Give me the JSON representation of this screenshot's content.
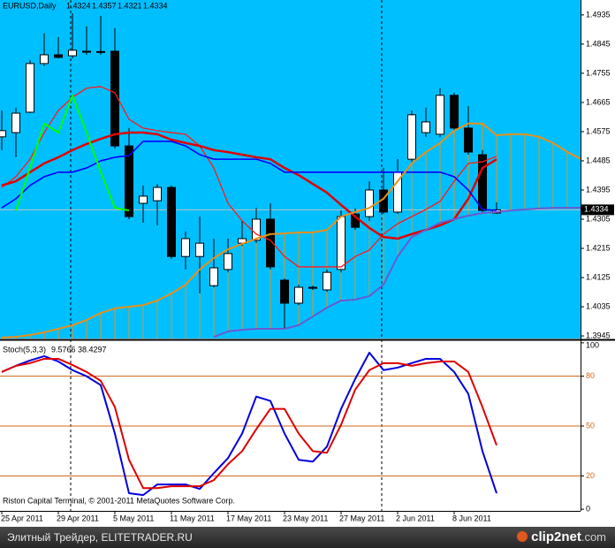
{
  "chart_data": [
    {
      "type": "candlestick",
      "title": "EURUSD,Daily",
      "categories": [
        "25 Apr 2011",
        null,
        null,
        null,
        "29 Apr 2011",
        null,
        null,
        null,
        "5 May 2011",
        null,
        null,
        null,
        "11 May 2011",
        null,
        null,
        null,
        "17 May 2011",
        null,
        null,
        null,
        "23 May 2011",
        null,
        null,
        null,
        "27 May 2011",
        null,
        null,
        null,
        "2 Jun 2011",
        null,
        null,
        null,
        "8 Jun 2011",
        null,
        null,
        null,
        null,
        null,
        null,
        null,
        null,
        null
      ],
      "open": [
        1.4559,
        1.4572,
        1.4635,
        1.4785,
        1.4812,
        1.4809,
        1.4823,
        1.482,
        1.4823,
        1.4531,
        1.4354,
        1.4362,
        1.4403,
        1.419,
        1.419,
        1.41,
        1.415,
        1.4231,
        1.424,
        1.4305,
        1.4117,
        1.4046,
        1.4095,
        1.4087,
        1.415,
        1.4321,
        1.4313,
        1.4395,
        1.4327,
        1.449,
        1.4572,
        1.4567,
        1.4687,
        1.4586,
        1.4504,
        1.4324,
        null,
        null,
        null,
        null,
        null,
        null
      ],
      "high": [
        1.464,
        1.4649,
        1.4796,
        1.4878,
        1.4867,
        1.494,
        1.49,
        1.4932,
        1.4894,
        1.4586,
        1.4409,
        1.4414,
        1.4409,
        1.4267,
        1.4313,
        1.4245,
        1.4245,
        1.43,
        1.434,
        1.4354,
        1.4122,
        1.4103,
        1.41,
        1.415,
        1.4332,
        1.4338,
        1.4422,
        1.4463,
        1.449,
        1.464,
        1.4649,
        1.4709,
        1.4695,
        1.4654,
        1.4518,
        1.4357,
        null,
        null,
        null,
        null,
        null,
        null
      ],
      "low": [
        1.4518,
        1.4496,
        1.4632,
        1.4777,
        1.4801,
        1.4801,
        1.4812,
        1.4812,
        1.4523,
        1.4305,
        1.4294,
        1.4286,
        1.4182,
        1.415,
        1.4076,
        1.4095,
        1.4141,
        1.4223,
        1.4231,
        1.415,
        1.3967,
        1.404,
        1.4087,
        1.4081,
        1.4141,
        1.4272,
        1.43,
        1.4321,
        1.4321,
        1.4482,
        1.4559,
        1.4559,
        1.4578,
        1.4504,
        1.4327,
        1.4321,
        null,
        null,
        null,
        null,
        null,
        null
      ],
      "close": [
        1.4578,
        1.4632,
        1.4785,
        1.4812,
        1.4804,
        1.4826,
        1.482,
        1.4822,
        1.4531,
        1.4313,
        1.4376,
        1.4403,
        1.419,
        1.4245,
        1.4231,
        1.4155,
        1.4199,
        1.4245,
        1.4305,
        1.4158,
        1.4046,
        1.4095,
        1.4092,
        1.4141,
        1.4313,
        1.428,
        1.4395,
        1.4327,
        1.445,
        1.4627,
        1.4605,
        1.4687,
        1.4586,
        1.4512,
        1.4332,
        1.4334,
        null,
        null,
        null,
        null,
        null,
        null
      ],
      "up_color": "#ffffff",
      "down_color": "#000000",
      "background": "#00bfff",
      "series": [
        {
          "color": "#ff1a1a",
          "width": 1.3,
          "values": [
            1.4403,
            1.4436,
            1.449,
            1.4572,
            1.464,
            1.4681,
            1.4709,
            1.4714,
            1.4695,
            1.4613,
            1.4586,
            1.4578,
            1.4572,
            1.4567,
            1.4531,
            1.4463,
            1.4354,
            1.43,
            1.4259,
            1.424,
            1.419,
            1.4158,
            1.4158,
            1.4158,
            1.4158,
            1.419,
            1.421,
            1.4259,
            1.4291,
            1.4313,
            1.4335,
            1.436,
            1.4422,
            1.4477,
            1.4482,
            1.4499,
            null,
            null,
            null,
            null,
            null,
            null
          ]
        },
        {
          "color": "#e00000",
          "width": 2.5,
          "values": [
            1.4409,
            1.4422,
            1.445,
            1.4477,
            1.4496,
            1.4518,
            1.4537,
            1.4553,
            1.4567,
            1.4572,
            1.4572,
            1.4567,
            1.455,
            1.454,
            1.4531,
            1.4518,
            1.4512,
            1.4504,
            1.4496,
            1.449,
            1.4463,
            1.4441,
            1.4414,
            1.4387,
            1.4349,
            1.4313,
            1.4278,
            1.425,
            1.4245,
            1.4259,
            1.4272,
            1.4286,
            1.4305,
            1.4368,
            1.4463,
            1.449,
            null,
            null,
            null,
            null,
            null,
            null
          ]
        },
        {
          "color": "#0000ff",
          "width": 1.6,
          "values": [
            1.434,
            1.4368,
            1.4409,
            1.4436,
            1.445,
            1.445,
            1.4463,
            1.4485,
            1.4496,
            1.4501,
            1.4545,
            1.4545,
            1.4545,
            1.4531,
            1.4504,
            1.449,
            1.449,
            1.449,
            1.449,
            1.4477,
            1.445,
            1.445,
            1.445,
            1.445,
            1.445,
            1.445,
            1.445,
            1.445,
            1.445,
            1.445,
            1.445,
            1.445,
            1.4436,
            1.4395,
            1.4335,
            1.4332,
            null,
            null,
            null,
            null,
            null,
            null
          ]
        },
        {
          "color": "#e8901a",
          "width": 2,
          "values": [
            1.394,
            1.3942,
            1.3948,
            1.3956,
            1.3967,
            1.3978,
            1.3994,
            1.4016,
            1.403,
            1.4035,
            1.404,
            1.4054,
            1.4076,
            1.4103,
            1.415,
            1.4185,
            1.4212,
            1.4229,
            1.4245,
            1.4259,
            1.4261,
            1.4264,
            1.4264,
            1.4272,
            1.4313,
            1.4327,
            1.434,
            1.4368,
            1.4422,
            1.4477,
            1.4512,
            1.454,
            1.4578,
            1.46,
            1.46,
            1.4564,
            1.4567,
            1.4567,
            1.4559,
            1.454,
            1.4512,
            1.449
          ]
        },
        {
          "color": "#6a5acd",
          "width": 2,
          "values": [
            null,
            null,
            null,
            null,
            null,
            null,
            null,
            null,
            null,
            null,
            null,
            null,
            null,
            null,
            null,
            1.3942,
            1.3959,
            1.3964,
            1.3967,
            1.3967,
            1.3967,
            1.3978,
            1.4005,
            1.4032,
            1.4054,
            1.4057,
            1.4068,
            1.4103,
            1.419,
            1.425,
            1.4272,
            1.4294,
            1.4305,
            1.4316,
            1.4324,
            1.4327,
            1.4332,
            1.4335,
            1.4338,
            1.434,
            1.434,
            1.434
          ]
        },
        {
          "color": "#00ff00",
          "width": 2,
          "values": [
            null,
            1.4332,
            1.4463,
            1.46,
            1.4572,
            1.4687,
            1.4572,
            1.445,
            1.434,
            1.4332,
            null,
            null,
            null,
            null,
            null,
            null,
            null,
            null,
            null,
            null,
            null,
            null,
            null,
            null,
            null,
            null,
            null,
            null,
            null,
            null,
            null,
            null,
            null,
            null,
            null,
            null,
            null,
            null,
            null,
            null,
            null,
            null
          ]
        }
      ],
      "cloud": {
        "series": [
          3,
          4
        ],
        "color": "#e8901a"
      },
      "last_price": 1.4334,
      "ylim": [
        1.3937,
        1.4981
      ],
      "yticks": [
        1.4935,
        1.4845,
        1.4755,
        1.4665,
        1.4575,
        1.4485,
        1.4395,
        1.4305,
        1.4215,
        1.4125,
        1.4035,
        1.3945
      ]
    },
    {
      "type": "line",
      "title": "Stoch(5,3,3)",
      "annotation": "Riston Capital Terminal, © 2001-2011 MetaQuotes Software Corp.",
      "series": [
        {
          "color": "#0000dd",
          "values": [
            82.5,
            86.2,
            89.4,
            92.0,
            88.8,
            83.6,
            79.9,
            74.6,
            45.5,
            9.6,
            8.5,
            14.9,
            14.9,
            14.9,
            12.2,
            21.7,
            30.7,
            45.5,
            67.7,
            65.1,
            45.5,
            29.7,
            28.6,
            37.6,
            60.3,
            78.3,
            94.1,
            83.6,
            85.1,
            87.8,
            90.4,
            90.4,
            82.5,
            69.3,
            34.9,
            9.5766,
            null,
            null,
            null,
            null,
            null,
            null
          ]
        },
        {
          "color": "#dd0000",
          "values": [
            82.5,
            86.2,
            87.8,
            90.4,
            90.4,
            86.7,
            82.5,
            77.2,
            61.4,
            29.7,
            12.7,
            12.7,
            13.8,
            13.8,
            13.8,
            17.5,
            27.0,
            34.9,
            48.1,
            60.3,
            60.3,
            45.5,
            34.9,
            33.9,
            50.8,
            71.9,
            83.6,
            87.8,
            87.8,
            86.2,
            87.8,
            88.8,
            88.8,
            82.5,
            61.4,
            38.4297,
            null,
            null,
            null,
            null,
            null,
            null
          ]
        }
      ],
      "levels": [
        20,
        50,
        80
      ],
      "level_color": "#d2691e",
      "ylim": [
        -1,
        101
      ],
      "yticks": [
        0,
        20,
        50,
        80,
        100
      ]
    }
  ],
  "footer": {
    "left": "Элитный Трейдер, ELITETRADER.RU",
    "logo": "clip2net",
    "logo_suffix": ".com"
  }
}
